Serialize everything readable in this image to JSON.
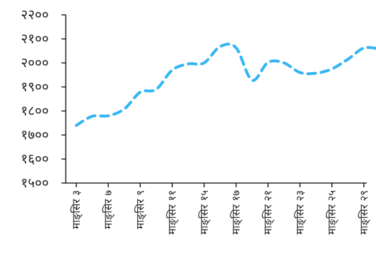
{
  "chart_data": {
    "type": "line",
    "categories": [
      "माङ्सिर ३",
      "माङ्सिर ७",
      "माङ्सिर ९",
      "माङ्सिर ११",
      "माङ्सिर १५",
      "माङ्सिर १७",
      "माङ्सिर २१",
      "माङ्सिर २३",
      "माङ्सिर २५",
      "माङ्सिर २९"
    ],
    "series": [
      {
        "x": [
          0,
          0.5,
          1,
          1.5,
          2,
          2.5,
          3,
          3.5,
          4,
          4.5,
          5,
          5.5,
          6,
          6.5,
          7,
          7.5,
          8,
          8.5,
          9,
          9.5
        ],
        "values": [
          1740,
          1778,
          1780,
          1808,
          1878,
          1890,
          1970,
          1996,
          2000,
          2068,
          2063,
          1928,
          2002,
          2000,
          1960,
          1957,
          1975,
          2015,
          2062,
          2058
        ],
        "color": "#33b5f2"
      }
    ],
    "yticks": [
      "२२००",
      "२१००",
      "२०००",
      "१९००",
      "१८००",
      "१७००",
      "१६००",
      "१५००"
    ],
    "ytick_values": [
      2200,
      2100,
      2000,
      1900,
      1800,
      1700,
      1600,
      1500
    ],
    "ylim": [
      1500,
      2200
    ],
    "grid": false,
    "legend": "none"
  }
}
